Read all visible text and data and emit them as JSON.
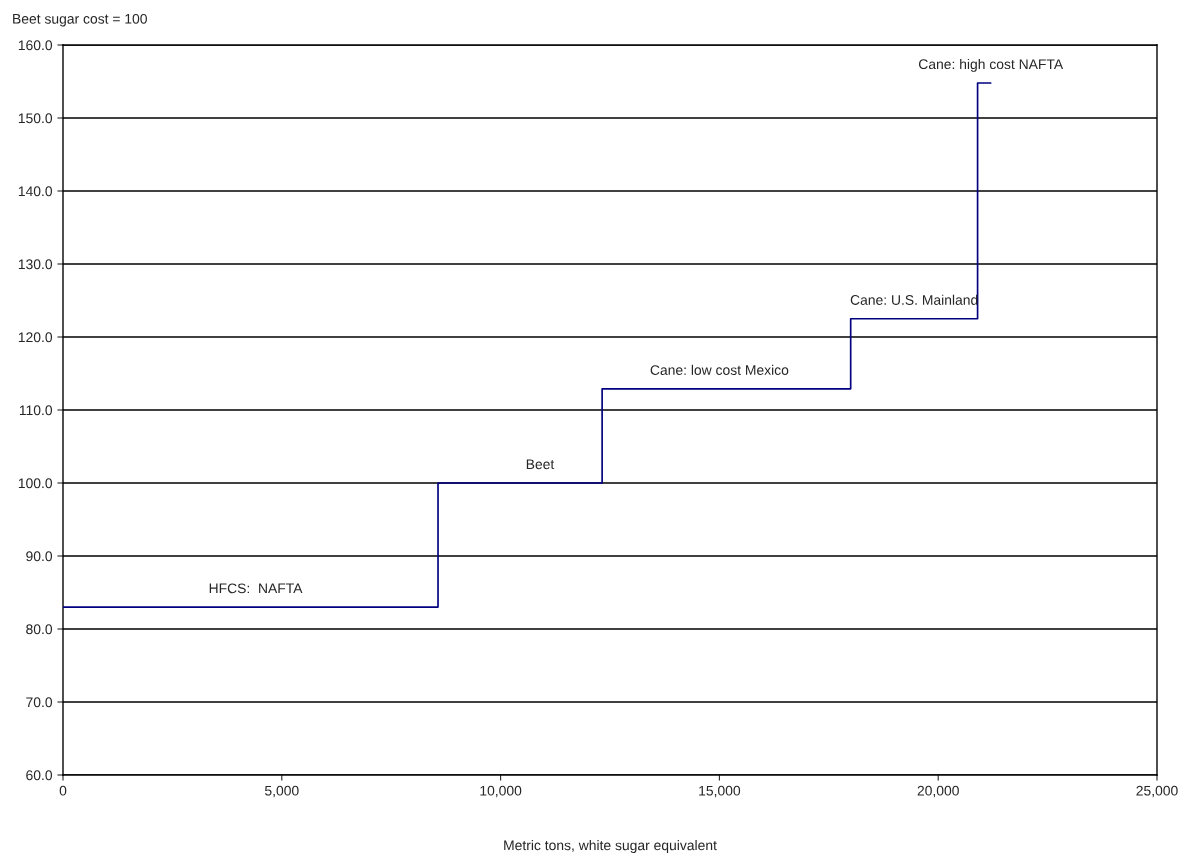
{
  "chart_data": {
    "type": "step",
    "ylabel": "Beet sugar cost = 100",
    "xlabel": "Metric tons, white sugar equivalent",
    "x": [
      0,
      8570,
      12320,
      18000,
      20900,
      21200
    ],
    "series": [
      {
        "color": "#000080",
        "values": [
          83.0,
          100.0,
          112.9,
          122.5,
          154.8,
          154.8
        ]
      }
    ],
    "xlim": [
      0,
      25000
    ],
    "xticks": [
      {
        "value": 0,
        "label": "0"
      },
      {
        "value": 5000,
        "label": "5,000"
      },
      {
        "value": 10000,
        "label": "10,000"
      },
      {
        "value": 15000,
        "label": "15,000"
      },
      {
        "value": 20000,
        "label": "20,000"
      },
      {
        "value": 25000,
        "label": "25,000"
      }
    ],
    "ylim": [
      60,
      160
    ],
    "yticks": [
      {
        "value": 60,
        "label": "60.0"
      },
      {
        "value": 70,
        "label": "70.0"
      },
      {
        "value": 80,
        "label": "80.0"
      },
      {
        "value": 90,
        "label": "90.0"
      },
      {
        "value": 100,
        "label": "100.0"
      },
      {
        "value": 110,
        "label": "110.0"
      },
      {
        "value": 120,
        "label": "120.0"
      },
      {
        "value": 130,
        "label": "130.0"
      },
      {
        "value": 140,
        "label": "140.0"
      },
      {
        "value": 150,
        "label": "150.0"
      },
      {
        "value": 160,
        "label": "160.0"
      }
    ],
    "grid": "y",
    "legend": false,
    "annotations": [
      {
        "text": "HFCS:  NAFTA",
        "x": 4400,
        "y": 83.0
      },
      {
        "text": "Beet",
        "x": 10900,
        "y": 100.0
      },
      {
        "text": "Cane: low cost Mexico",
        "x": 15000,
        "y": 112.9
      },
      {
        "text": "Cane: U.S. Mainland",
        "x": 19450,
        "y": 122.5
      },
      {
        "text": "Cane: high cost NAFTA",
        "x": 21200,
        "y": 154.8
      }
    ]
  }
}
